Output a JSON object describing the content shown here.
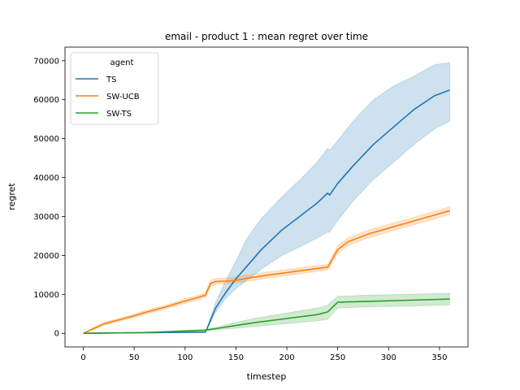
{
  "chart_data": {
    "type": "line",
    "title": "email - product 1 : mean regret over time",
    "xlabel": "timestep",
    "ylabel": "regret",
    "xlim": [
      -18,
      378
    ],
    "ylim": [
      -3500,
      73500
    ],
    "xticks": [
      0,
      50,
      100,
      150,
      200,
      250,
      300,
      350
    ],
    "yticks": [
      0,
      10000,
      20000,
      30000,
      40000,
      50000,
      60000,
      70000
    ],
    "grid": false,
    "legend": {
      "title": "agent",
      "placement": "top-left"
    },
    "series": [
      {
        "name": "TS",
        "color": "#1f77b4",
        "band_color": "#1f77b4",
        "x": [
          0,
          60,
          120,
          122,
          130,
          140,
          150,
          160,
          175,
          195,
          215,
          230,
          240,
          242,
          250,
          265,
          285,
          305,
          325,
          345,
          360
        ],
        "y": [
          0,
          150,
          300,
          1500,
          6500,
          10500,
          14000,
          17000,
          21500,
          26500,
          30500,
          33500,
          36000,
          35500,
          38500,
          43000,
          48500,
          53000,
          57500,
          61000,
          62500
        ],
        "lower": [
          0,
          150,
          300,
          1200,
          5500,
          9000,
          11500,
          13500,
          16500,
          20000,
          22500,
          24500,
          26000,
          26000,
          29000,
          34000,
          39500,
          44000,
          48500,
          52500,
          54500
        ],
        "upper": [
          0,
          150,
          300,
          1800,
          8000,
          13500,
          18500,
          24000,
          29500,
          35000,
          40000,
          44000,
          47500,
          47000,
          49500,
          54500,
          60000,
          63500,
          66000,
          69000,
          69500
        ]
      },
      {
        "name": "SW-UCB",
        "color": "#ff7f0e",
        "band_color": "#ff7f0e",
        "x": [
          0,
          10,
          20,
          30,
          40,
          50,
          60,
          70,
          80,
          90,
          100,
          110,
          120,
          122,
          125,
          130,
          140,
          150,
          160,
          180,
          200,
          220,
          240,
          242,
          250,
          260,
          280,
          300,
          320,
          340,
          360
        ],
        "y": [
          0,
          1200,
          2400,
          3100,
          3800,
          4500,
          5300,
          6000,
          6700,
          7500,
          8300,
          9000,
          9800,
          11000,
          12800,
          13300,
          13400,
          13600,
          14100,
          14900,
          15600,
          16300,
          17000,
          17800,
          21500,
          23500,
          25500,
          27000,
          28500,
          30000,
          31500
        ],
        "lower": [
          0,
          900,
          2000,
          2700,
          3400,
          4100,
          4800,
          5500,
          6200,
          7000,
          7700,
          8400,
          9200,
          10300,
          12000,
          12500,
          12700,
          12900,
          13300,
          14100,
          14800,
          15500,
          16300,
          17000,
          20500,
          22500,
          24500,
          26000,
          27500,
          29000,
          30500
        ],
        "upper": [
          0,
          1500,
          2800,
          3500,
          4200,
          4900,
          5800,
          6500,
          7200,
          8000,
          8900,
          9600,
          10400,
          11700,
          13600,
          14100,
          14200,
          14400,
          14900,
          15700,
          16400,
          17100,
          17700,
          18600,
          22500,
          24500,
          26500,
          28000,
          29500,
          31000,
          32500
        ]
      },
      {
        "name": "SW-TS",
        "color": "#2ca02c",
        "band_color": "#2ca02c",
        "x": [
          0,
          60,
          120,
          130,
          150,
          170,
          200,
          230,
          240,
          242,
          250,
          280,
          320,
          360
        ],
        "y": [
          0,
          200,
          800,
          1200,
          2000,
          2800,
          3800,
          4800,
          5500,
          6000,
          8000,
          8200,
          8500,
          8800
        ],
        "lower": [
          0,
          150,
          600,
          900,
          1300,
          1800,
          2500,
          3200,
          3600,
          4300,
          6500,
          6800,
          7000,
          7300
        ],
        "upper": [
          0,
          250,
          1000,
          1500,
          2800,
          3900,
          5200,
          6500,
          7200,
          7800,
          9500,
          9800,
          10000,
          10300
        ]
      }
    ]
  }
}
